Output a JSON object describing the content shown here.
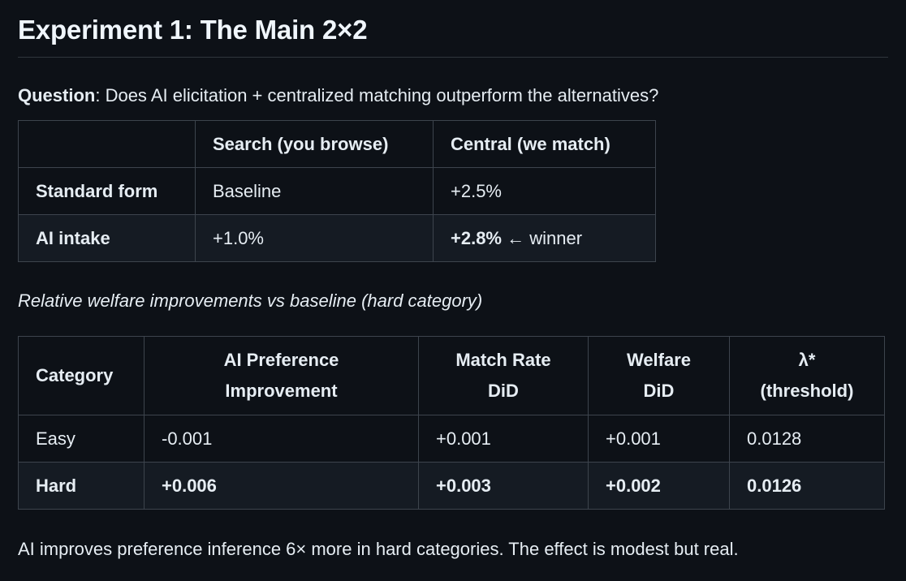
{
  "title": "Experiment 1: The Main 2×2",
  "question": {
    "label": "Question",
    "text": ": Does AI elicitation + centralized matching outperform the alternatives?"
  },
  "table1": {
    "headers": [
      "",
      "Search (you browse)",
      "Central (we match)"
    ],
    "rows": [
      {
        "label": "Standard form",
        "search": "Baseline",
        "central": "+2.5%",
        "central_note": ""
      },
      {
        "label": "AI intake",
        "search": "+1.0%",
        "central": "+2.8%",
        "central_note": " ← winner"
      }
    ]
  },
  "caption": "Relative welfare improvements vs baseline (hard category)",
  "table2": {
    "headers": [
      {
        "line1": "Category",
        "line2": ""
      },
      {
        "line1": "AI Preference",
        "line2": "Improvement"
      },
      {
        "line1": "Match Rate",
        "line2": "DiD"
      },
      {
        "line1": "Welfare",
        "line2": "DiD"
      },
      {
        "line1": "λ*",
        "line2": "(threshold)"
      }
    ],
    "rows": [
      {
        "category": "Easy",
        "ai_pref": "-0.001",
        "match_rate": "+0.001",
        "welfare": "+0.001",
        "lambda": "0.0128"
      },
      {
        "category": "Hard",
        "ai_pref": "+0.006",
        "match_rate": "+0.003",
        "welfare": "+0.002",
        "lambda": "0.0126"
      }
    ]
  },
  "footer": "AI improves preference inference 6× more in hard categories. The effect is modest but real."
}
